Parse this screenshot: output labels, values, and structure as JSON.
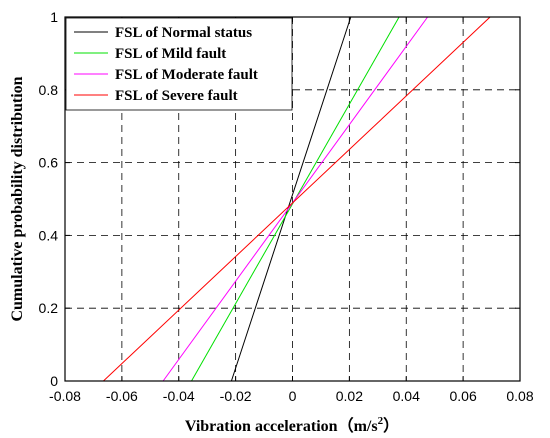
{
  "chart_data": {
    "type": "line",
    "xlabel": "Vibration acceleration（m/s",
    "xlabel_sup": "2",
    "xlabel_close": "）",
    "ylabel": "Cumulative probability distribution",
    "xlim": [
      -0.08,
      0.08
    ],
    "ylim": [
      0,
      1
    ],
    "xticks": [
      "-0.08",
      "-0.06",
      "-0.04",
      "-0.02",
      "0",
      "0.02",
      "0.04",
      "0.06",
      "0.08"
    ],
    "yticks": [
      "0",
      "0.2",
      "0.4",
      "0.6",
      "0.8",
      "1"
    ],
    "xtick_values": [
      -0.08,
      -0.06,
      -0.04,
      -0.02,
      0,
      0.02,
      0.04,
      0.06,
      0.08
    ],
    "ytick_values": [
      0,
      0.2,
      0.4,
      0.6,
      0.8,
      1
    ],
    "grid": true,
    "legend_position": "top-left",
    "series": [
      {
        "name": "FSL of Normal status",
        "color": "#000000",
        "x": [
          -0.0215,
          0.0205
        ],
        "y": [
          0,
          1
        ]
      },
      {
        "name": "FSL of Mild fault",
        "color": "#00e000",
        "x": [
          -0.0355,
          0.0375
        ],
        "y": [
          0,
          1
        ]
      },
      {
        "name": "FSL of Moderate fault",
        "color": "#ff00ff",
        "x": [
          -0.0455,
          0.0475
        ],
        "y": [
          0,
          1
        ]
      },
      {
        "name": "FSL of Severe fault",
        "color": "#ff0000",
        "x": [
          -0.0665,
          0.0695
        ],
        "y": [
          0,
          1
        ]
      }
    ]
  }
}
